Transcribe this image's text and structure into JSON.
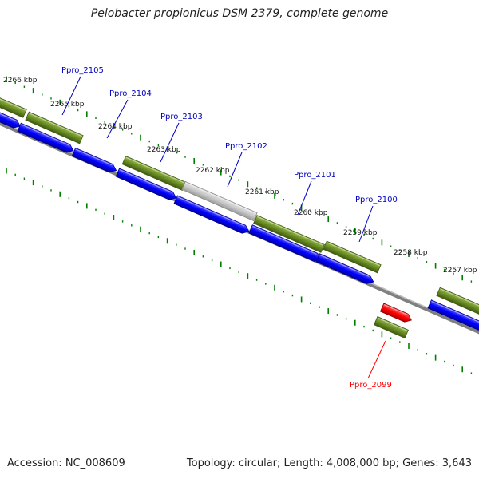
{
  "title": "Pelobacter propionicus DSM 2379, complete genome",
  "footer": {
    "accession": "Accession: NC_008609",
    "summary": "Topology: circular; Length: 4,008,000 bp; Genes: 3,643"
  },
  "colors": {
    "cds_forward": "#0000ff",
    "gene": "#6b8e23",
    "selected_gene": "#ff0000",
    "noncoding": "#c8c8c8",
    "backbone": "#808080",
    "tick": "#008000",
    "label_default": "#0000c0",
    "label_selected": "#ff0000"
  },
  "kbp_labels": [
    "2266 kbp",
    "2265 kbp",
    "2264 kbp",
    "2263 kbp",
    "2262 kbp",
    "2261 kbp",
    "2260 kbp",
    "2259 kbp",
    "2258 kbp",
    "2257 kbp"
  ],
  "genes": [
    {
      "name": "Ppro_2105",
      "selected": false
    },
    {
      "name": "Ppro_2104",
      "selected": false
    },
    {
      "name": "Ppro_2103",
      "selected": false
    },
    {
      "name": "Ppro_2102",
      "selected": false
    },
    {
      "name": "Ppro_2101",
      "selected": false
    },
    {
      "name": "Ppro_2100",
      "selected": false
    },
    {
      "name": "Ppro_2099",
      "selected": true
    }
  ]
}
